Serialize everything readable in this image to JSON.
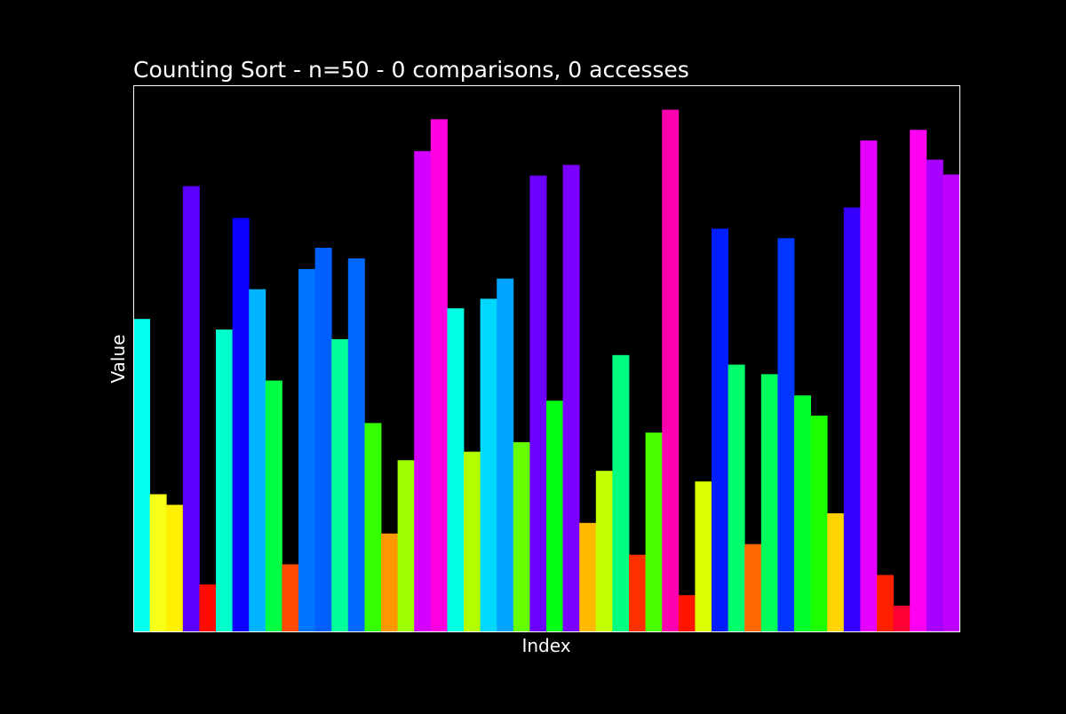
{
  "chart_data": {
    "type": "bar",
    "title": "Counting Sort - n=50 - 0 comparisons, 0 accesses",
    "xlabel": "Index",
    "ylabel": "Value",
    "n": 50,
    "x_ticks": false,
    "y_ticks": false,
    "grid": false,
    "legend": "none",
    "ylim": [
      0,
      51.5
    ],
    "values": [
      29.5,
      13,
      12,
      42,
      4.5,
      28.5,
      39,
      32.3,
      23.7,
      6.4,
      34.2,
      36.2,
      27.6,
      35.2,
      19.7,
      9.3,
      16.2,
      45.3,
      48.3,
      30.5,
      17,
      31.4,
      33.3,
      17.9,
      43,
      21.8,
      44,
      10.3,
      15.2,
      26.1,
      7.3,
      18.8,
      49.2,
      3.5,
      14.2,
      38,
      25.2,
      8.3,
      24.3,
      37.1,
      22.3,
      20.4,
      11.2,
      40,
      46.3,
      5.4,
      2.5,
      47.3,
      44.5,
      43.1
    ],
    "colors": [
      "#00ffee",
      "#f8ff18",
      "#ffef00",
      "#5a00ff",
      "#ff0b00",
      "#00ffcc",
      "#0d00ff",
      "#00b4ff",
      "#00ff44",
      "#ff4a00",
      "#0075ff",
      "#0060ff",
      "#00ff9b",
      "#0068ff",
      "#33ff00",
      "#ff9800",
      "#9eff00",
      "#d500ff",
      "#ff00e0",
      "#00ffe3",
      "#b3ff00",
      "#00d9ff",
      "#00a3ff",
      "#66ff00",
      "#6b00ff",
      "#00ff15",
      "#7a00ff",
      "#ffba00",
      "#c4ff00",
      "#00ff80",
      "#ff3000",
      "#48ff00",
      "#ff00b1",
      "#ff1400",
      "#dbff00",
      "#001eff",
      "#00ff6c",
      "#ff6700",
      "#00ff5b",
      "#0036ff",
      "#00ff2a",
      "#1cff00",
      "#ffd400",
      "#3500ff",
      "#e500ff",
      "#ff2000",
      "#ff0033",
      "#ff00f0",
      "#a800ff",
      "#be00ff"
    ],
    "background": "#000000",
    "frame_color": "#ffffff",
    "text_color": "#ffffff"
  }
}
